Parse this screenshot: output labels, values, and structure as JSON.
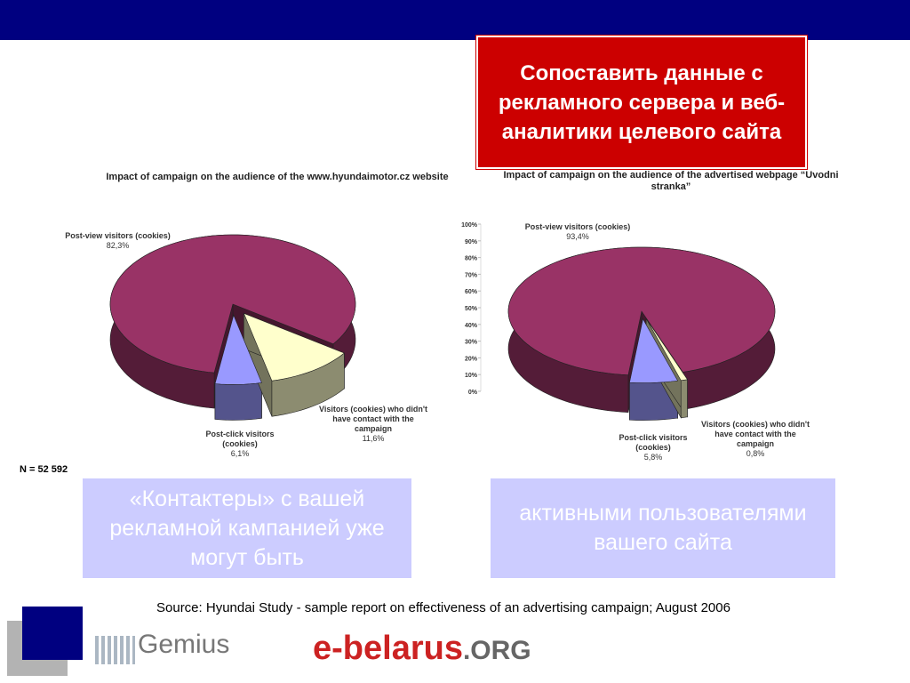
{
  "slide": {
    "highlight": "Сопоставить данные с рекламного сервера и веб-аналитики целевого сайта",
    "sample_size": "N = 52 592",
    "box_left": "«Контактеры» с вашей рекламной кампанией уже могут быть",
    "box_right": "активными пользователями вашего сайта",
    "source": "Source: Hyundai Study - sample report on effectiveness of an advertising campaign; August 2006",
    "logo_gemius": "Gemius",
    "logo_ebelarus": "e-belarus",
    "logo_org": ".ORG"
  },
  "chart_data": [
    {
      "type": "pie3d",
      "title": "Impact of campaign on the audience of the www.hyundaimotor.cz website",
      "categories": [
        "Post-view visitors (cookies)",
        "Post-click visitors (cookies)",
        "Visitors (cookies) who didn't have contact with the campaign"
      ],
      "values": [
        82.3,
        6.1,
        11.6
      ],
      "value_labels": [
        "82,3%",
        "6,1%",
        "11,6%"
      ],
      "colors": [
        "#993366",
        "#9999ff",
        "#ffffcc"
      ]
    },
    {
      "type": "pie3d",
      "title": "Impact of campaign on the audience of the advertised webpage “Uvodni stranka”",
      "categories": [
        "Post-view visitors (cookies)",
        "Post-click visitors (cookies)",
        "Visitors (cookies) who didn't have contact with the campaign"
      ],
      "values": [
        93.4,
        5.8,
        0.8
      ],
      "value_labels": [
        "93,4%",
        "5,8%",
        "0,8%"
      ],
      "colors": [
        "#993366",
        "#9999ff",
        "#ffffcc"
      ],
      "ylim": [
        0,
        100
      ],
      "yticks": [
        {
          "value": 0,
          "label": "0%"
        },
        {
          "value": 10,
          "label": "10%"
        },
        {
          "value": 20,
          "label": "20%"
        },
        {
          "value": 30,
          "label": "30%"
        },
        {
          "value": 40,
          "label": "40%"
        },
        {
          "value": 50,
          "label": "50%"
        },
        {
          "value": 60,
          "label": "60%"
        },
        {
          "value": 70,
          "label": "70%"
        },
        {
          "value": 80,
          "label": "80%"
        },
        {
          "value": 90,
          "label": "90%"
        },
        {
          "value": 100,
          "label": "100%"
        }
      ]
    }
  ]
}
